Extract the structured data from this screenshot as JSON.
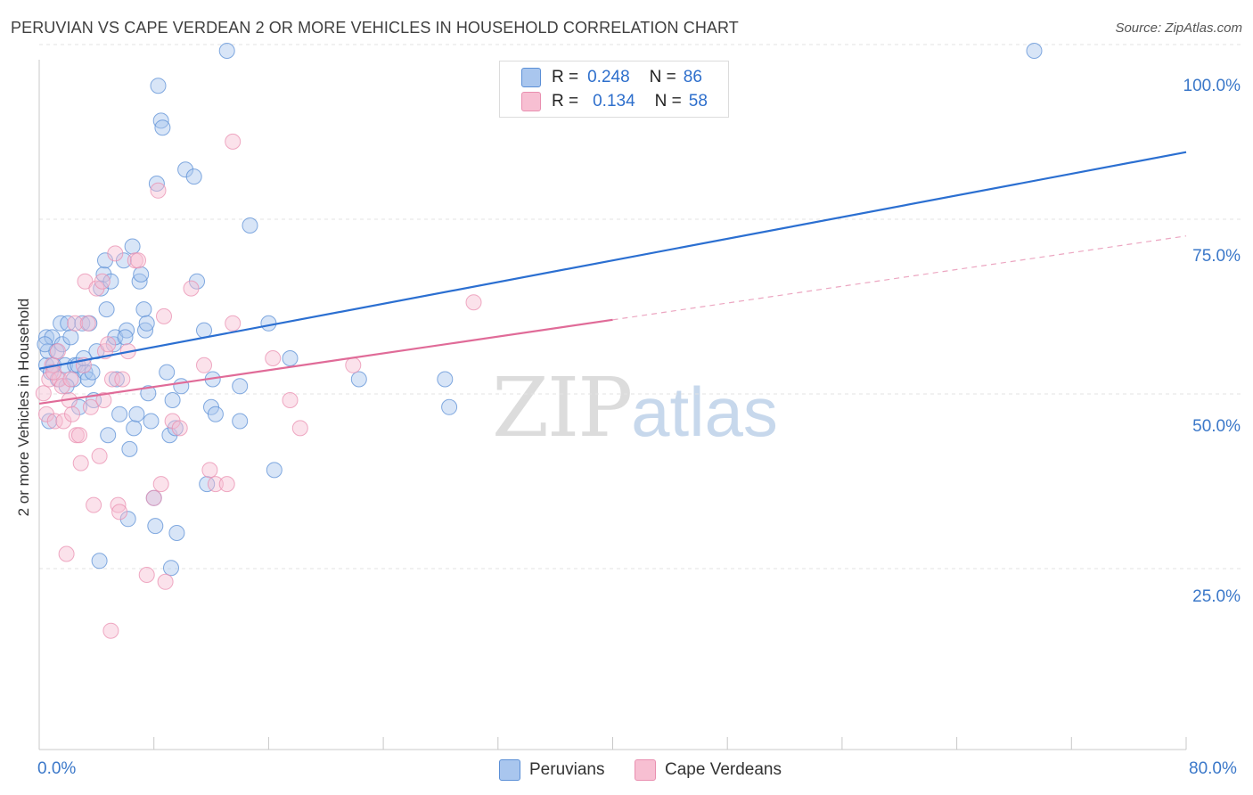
{
  "title": "PERUVIAN VS CAPE VERDEAN 2 OR MORE VEHICLES IN HOUSEHOLD CORRELATION CHART",
  "source": "Source: ZipAtlas.com",
  "watermark": {
    "zip": "ZIP",
    "atlas": "atlas"
  },
  "colors": {
    "peruvian_fill": "#a9c6ee",
    "peruvian_stroke": "#5b8fd6",
    "peruvian_line": "#2b6fd1",
    "capeverdean_fill": "#f7bfd2",
    "capeverdean_stroke": "#e98fb0",
    "capeverdean_line": "#e06b98",
    "tick_label": "#3b78c9",
    "grid": "#e3e3e3"
  },
  "legend": {
    "rows": [
      {
        "r_label": "R =",
        "r_value": "0.248",
        "n_label": "N =",
        "n_value": "86"
      },
      {
        "r_label": "R =",
        "r_value": "0.134",
        "n_label": "N =",
        "n_value": "58"
      }
    ]
  },
  "bottom_legend": {
    "peruvians": "Peruvians",
    "capeverdeans": "Cape Verdeans"
  },
  "chart_data": {
    "type": "scatter",
    "title": "PERUVIAN VS CAPE VERDEAN 2 OR MORE VEHICLES IN HOUSEHOLD CORRELATION CHART",
    "ylabel": "2 or more Vehicles in Household",
    "xlabel": "",
    "xlim": [
      0,
      80
    ],
    "ylim": [
      0,
      100
    ],
    "x_tick_labels": [
      "0.0%",
      "80.0%"
    ],
    "y_tick_labels": [
      "25.0%",
      "50.0%",
      "75.0%",
      "100.0%"
    ],
    "y_ticks": [
      25,
      50,
      75,
      100
    ],
    "grid": "horizontal dashed",
    "legend_placement": "top-center",
    "series": [
      {
        "name": "Peruvians",
        "r": 0.248,
        "n": 86,
        "trend": {
          "x0": 0,
          "y0": 54.5,
          "x1": 80,
          "y1": 85.5,
          "style": "solid"
        },
        "points": [
          [
            0.5,
            55
          ],
          [
            0.5,
            59
          ],
          [
            0.6,
            57
          ],
          [
            0.7,
            47
          ],
          [
            0.8,
            54
          ],
          [
            0.9,
            59
          ],
          [
            1,
            55
          ],
          [
            1.2,
            57
          ],
          [
            1.3,
            53
          ],
          [
            1.5,
            61
          ],
          [
            1.6,
            58
          ],
          [
            1.8,
            55
          ],
          [
            2,
            61
          ],
          [
            2.2,
            59
          ],
          [
            2.4,
            53
          ],
          [
            2.5,
            55
          ],
          [
            2.7,
            55
          ],
          [
            2.8,
            49
          ],
          [
            3,
            61
          ],
          [
            3.2,
            54
          ],
          [
            3.4,
            53
          ],
          [
            3.5,
            61
          ],
          [
            3.7,
            54
          ],
          [
            3.8,
            50
          ],
          [
            4,
            57
          ],
          [
            4.2,
            27
          ],
          [
            4.3,
            66
          ],
          [
            4.5,
            68
          ],
          [
            4.6,
            70
          ],
          [
            4.7,
            63
          ],
          [
            4.8,
            45
          ],
          [
            5,
            67
          ],
          [
            5.2,
            58
          ],
          [
            5.3,
            59
          ],
          [
            5.4,
            53
          ],
          [
            5.6,
            48
          ],
          [
            5.9,
            70
          ],
          [
            6.1,
            60
          ],
          [
            6.2,
            33
          ],
          [
            6.3,
            43
          ],
          [
            6.5,
            72
          ],
          [
            6.6,
            46
          ],
          [
            6.8,
            48
          ],
          [
            7,
            67
          ],
          [
            7.1,
            68
          ],
          [
            7.3,
            63
          ],
          [
            7.4,
            60
          ],
          [
            7.5,
            61
          ],
          [
            7.6,
            51
          ],
          [
            7.8,
            47
          ],
          [
            8,
            36
          ],
          [
            8.1,
            32
          ],
          [
            8.2,
            81
          ],
          [
            8.3,
            95
          ],
          [
            8.5,
            90
          ],
          [
            8.6,
            89
          ],
          [
            8.9,
            54
          ],
          [
            9.1,
            45
          ],
          [
            9.2,
            26
          ],
          [
            9.3,
            50
          ],
          [
            9.5,
            46
          ],
          [
            9.6,
            31
          ],
          [
            9.9,
            52
          ],
          [
            10.2,
            83
          ],
          [
            10.8,
            82
          ],
          [
            11,
            67
          ],
          [
            11.5,
            60
          ],
          [
            11.7,
            38
          ],
          [
            12,
            49
          ],
          [
            12.1,
            53
          ],
          [
            12.3,
            48
          ],
          [
            13.1,
            100
          ],
          [
            14,
            47
          ],
          [
            14,
            52
          ],
          [
            14.7,
            75
          ],
          [
            16,
            61
          ],
          [
            16.4,
            40
          ],
          [
            17.5,
            56
          ],
          [
            22.3,
            53
          ],
          [
            28.3,
            53
          ],
          [
            28.6,
            49
          ],
          [
            69.4,
            100
          ],
          [
            0.4,
            58
          ],
          [
            1.9,
            52
          ],
          [
            6,
            59
          ],
          [
            3.1,
            56
          ]
        ]
      },
      {
        "name": "Cape Verdeans",
        "r": 0.134,
        "n": 58,
        "trend": {
          "x0": 0,
          "y0": 49.5,
          "x1": 40,
          "y1": 61.5,
          "style": "solid",
          "extend_to": 80,
          "extend_y": 73.5,
          "extend_style": "dashed"
        },
        "points": [
          [
            0.3,
            51
          ],
          [
            0.5,
            48
          ],
          [
            0.7,
            53
          ],
          [
            0.9,
            55
          ],
          [
            1.1,
            47
          ],
          [
            1.3,
            57
          ],
          [
            1.4,
            53
          ],
          [
            1.6,
            52
          ],
          [
            1.7,
            47
          ],
          [
            1.9,
            28
          ],
          [
            2.1,
            50
          ],
          [
            2.2,
            53
          ],
          [
            2.3,
            48
          ],
          [
            2.5,
            61
          ],
          [
            2.6,
            45
          ],
          [
            2.8,
            45
          ],
          [
            2.9,
            41
          ],
          [
            3.1,
            55
          ],
          [
            3.2,
            67
          ],
          [
            3.4,
            61
          ],
          [
            3.6,
            49
          ],
          [
            3.8,
            35
          ],
          [
            4,
            66
          ],
          [
            4.2,
            42
          ],
          [
            4.4,
            67
          ],
          [
            4.5,
            50
          ],
          [
            4.6,
            57
          ],
          [
            4.8,
            58
          ],
          [
            5,
            17
          ],
          [
            5.1,
            53
          ],
          [
            5.3,
            71
          ],
          [
            5.5,
            35
          ],
          [
            5.6,
            34
          ],
          [
            5.8,
            53
          ],
          [
            6.2,
            57
          ],
          [
            6.7,
            70
          ],
          [
            6.9,
            70
          ],
          [
            7.5,
            25
          ],
          [
            8,
            36
          ],
          [
            8.3,
            80
          ],
          [
            8.5,
            38
          ],
          [
            8.7,
            62
          ],
          [
            8.8,
            24
          ],
          [
            9.3,
            47
          ],
          [
            9.8,
            46
          ],
          [
            10.6,
            66
          ],
          [
            11.5,
            55
          ],
          [
            11.9,
            40
          ],
          [
            12.3,
            38
          ],
          [
            13.1,
            38
          ],
          [
            13.5,
            61
          ],
          [
            16.3,
            56
          ],
          [
            17.5,
            50
          ],
          [
            18.2,
            46
          ],
          [
            21.9,
            55
          ],
          [
            30.3,
            64
          ],
          [
            13.5,
            87
          ],
          [
            1,
            54
          ]
        ]
      }
    ]
  }
}
